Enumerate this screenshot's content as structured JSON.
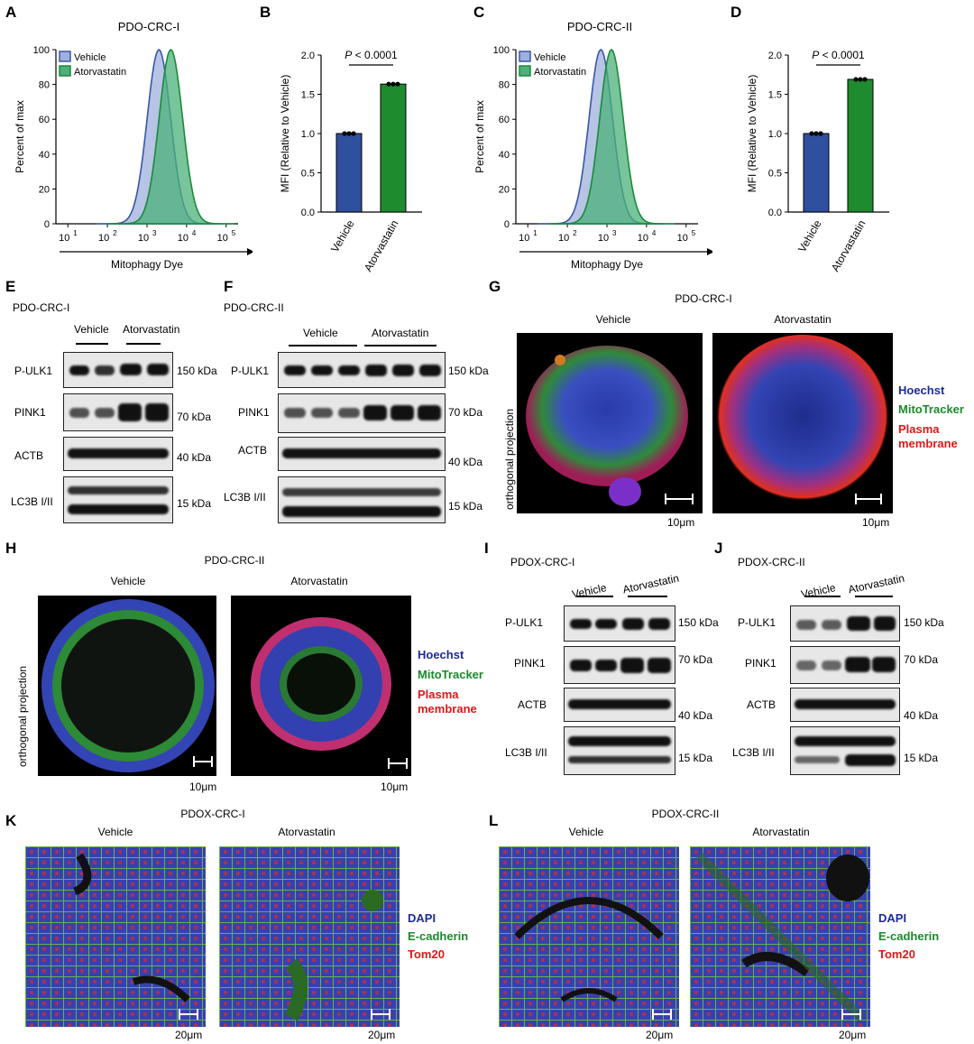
{
  "panel_letters": {
    "A": "A",
    "B": "B",
    "C": "C",
    "D": "D",
    "E": "E",
    "F": "F",
    "G": "G",
    "H": "H",
    "I": "I",
    "J": "J",
    "K": "K",
    "L": "L"
  },
  "flow": {
    "A_title": "PDO-CRC-I",
    "C_title": "PDO-CRC-II",
    "xlabel": "Mitophagy Dye",
    "ylabel": "Percent of max",
    "legend_vehicle": "Vehicle",
    "legend_atorva": "Atorvastatin",
    "yticks": [
      "0",
      "20",
      "40",
      "60",
      "80",
      "100"
    ],
    "xticks": [
      "10",
      "10",
      "10",
      "10",
      "10"
    ],
    "xtick_exp": [
      "1",
      "2",
      "3",
      "4",
      "5"
    ],
    "colors": {
      "vehicle": "#3a56a8",
      "atorva": "#1b8a3a"
    }
  },
  "chart_data": [
    {
      "type": "area",
      "panel": "A",
      "title": "PDO-CRC-I",
      "xlabel": "Mitophagy Dye",
      "ylabel": "Percent of max",
      "xscale": "log",
      "xlim": [
        5,
        200000
      ],
      "ylim": [
        0,
        100
      ],
      "series": [
        {
          "name": "Vehicle",
          "peak_x": 2000,
          "peak_y": 100
        },
        {
          "name": "Atorvastatin",
          "peak_x": 4000,
          "peak_y": 100
        }
      ]
    },
    {
      "type": "bar",
      "panel": "B",
      "categories": [
        "Vehicle",
        "Atorvastatin"
      ],
      "values": [
        1.0,
        1.63
      ],
      "ylabel": "MFI (Relative to Vehicle)",
      "ylim": [
        0,
        2.0
      ],
      "yticks": [
        "0.0",
        "0.5",
        "1.0",
        "1.5",
        "2.0"
      ],
      "annotation": "P < 0.0001"
    },
    {
      "type": "area",
      "panel": "C",
      "title": "PDO-CRC-II",
      "xlabel": "Mitophagy Dye",
      "ylabel": "Percent of max",
      "xscale": "log",
      "xlim": [
        5,
        200000
      ],
      "ylim": [
        0,
        100
      ],
      "series": [
        {
          "name": "Vehicle",
          "peak_x": 700,
          "peak_y": 100
        },
        {
          "name": "Atorvastatin",
          "peak_x": 1300,
          "peak_y": 100
        }
      ]
    },
    {
      "type": "bar",
      "panel": "D",
      "categories": [
        "Vehicle",
        "Atorvastatin"
      ],
      "values": [
        1.0,
        1.69
      ],
      "ylabel": "MFI (Relative to Vehicle)",
      "ylim": [
        0,
        2.0
      ],
      "yticks": [
        "0.0",
        "0.5",
        "1.0",
        "1.5",
        "2.0"
      ],
      "annotation": "P < 0.0001"
    }
  ],
  "bar": {
    "ylabel": "MFI (Relative to Vehicle)",
    "p_prefix": "P",
    "p_rest": " < 0.0001",
    "cat1": "Vehicle",
    "cat2": "Atorvastatin"
  },
  "blots": {
    "E_title": "PDO-CRC-I",
    "F_title": "PDO-CRC-II",
    "I_title": "PDOX-CRC-I",
    "J_title": "PDOX-CRC-II",
    "vehicle": "Vehicle",
    "atorva": "Atorvastatin",
    "rows": [
      "P-ULK1",
      "PINK1",
      "ACTB",
      "LC3B I/II"
    ],
    "kda": [
      "150 kDa",
      "70 kDa",
      "40 kDa",
      "15 kDa"
    ]
  },
  "imaging": {
    "G_title": "PDO-CRC-I",
    "H_title": "PDO-CRC-II",
    "K_title": "PDOX-CRC-I",
    "L_title": "PDOX-CRC-II",
    "vehicle": "Vehicle",
    "atorva": "Atorvastatin",
    "ortho": "orthogonal projection",
    "scale10": "10μm",
    "scale20": "20μm",
    "leg_hoechst": "Hoechst",
    "leg_mito": "MitoTracker",
    "leg_plasma1": "Plasma",
    "leg_plasma2": "membrane",
    "leg_dapi": "DAPI",
    "leg_ecad": "E-cadherin",
    "leg_tom": "Tom20"
  }
}
